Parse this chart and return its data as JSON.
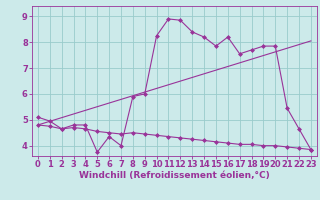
{
  "background_color": "#cceaea",
  "line_color": "#993399",
  "grid_color": "#99cccc",
  "xlabel": "Windchill (Refroidissement éolien,°C)",
  "xlim": [
    -0.5,
    23.5
  ],
  "ylim": [
    3.6,
    9.4
  ],
  "xticks": [
    0,
    1,
    2,
    3,
    4,
    5,
    6,
    7,
    8,
    9,
    10,
    11,
    12,
    13,
    14,
    15,
    16,
    17,
    18,
    19,
    20,
    21,
    22,
    23
  ],
  "yticks": [
    4,
    5,
    6,
    7,
    8,
    9
  ],
  "line1_x": [
    0,
    1,
    2,
    3,
    4,
    5,
    6,
    7,
    8,
    9,
    10,
    11,
    12,
    13,
    14,
    15,
    16,
    17,
    18,
    19,
    20,
    21,
    22,
    23
  ],
  "line1_y": [
    5.1,
    4.95,
    4.65,
    4.8,
    4.8,
    3.75,
    4.35,
    4.0,
    5.9,
    6.0,
    8.25,
    8.9,
    8.85,
    8.4,
    8.2,
    7.85,
    8.2,
    7.55,
    7.7,
    7.85,
    7.85,
    5.45,
    4.65,
    3.85
  ],
  "line2_x": [
    0,
    23
  ],
  "line2_y": [
    4.8,
    8.05
  ],
  "line3_x": [
    0,
    1,
    2,
    3,
    4,
    5,
    6,
    7,
    8,
    9,
    10,
    11,
    12,
    13,
    14,
    15,
    16,
    17,
    18,
    19,
    20,
    21,
    22,
    23
  ],
  "line3_y": [
    4.8,
    4.75,
    4.65,
    4.7,
    4.65,
    4.55,
    4.5,
    4.45,
    4.5,
    4.45,
    4.4,
    4.35,
    4.3,
    4.25,
    4.2,
    4.15,
    4.1,
    4.05,
    4.05,
    4.0,
    4.0,
    3.95,
    3.9,
    3.85
  ],
  "marker": "D",
  "markersize": 2.0,
  "linewidth": 0.8,
  "xlabel_fontsize": 6.5,
  "tick_fontsize": 6
}
